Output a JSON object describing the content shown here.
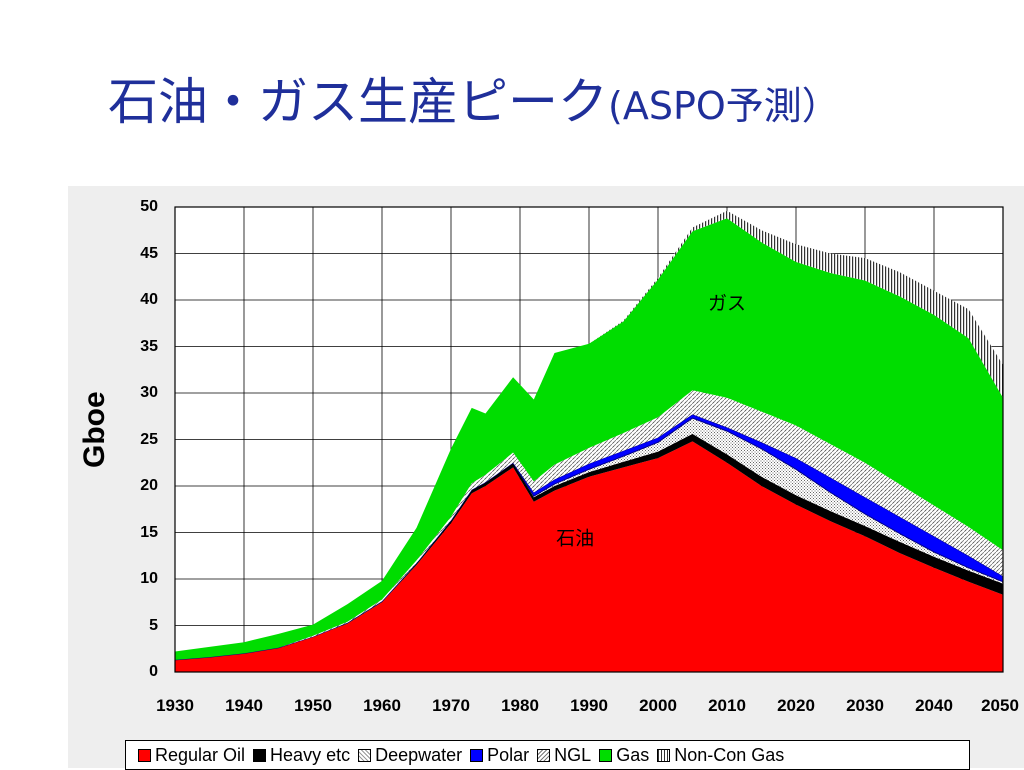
{
  "title": {
    "main": "石油・ガス生産ピーク",
    "sub": "(ASPO予測）"
  },
  "chart_data": {
    "type": "area",
    "stacked": true,
    "title": "",
    "xlabel": "",
    "ylabel": "Gboe",
    "xlim": [
      1930,
      2050
    ],
    "ylim": [
      0,
      50
    ],
    "grid": true,
    "x_ticks": [
      "1930",
      "1940",
      "1950",
      "1960",
      "1970",
      "1980",
      "1990",
      "2000",
      "2010",
      "2020",
      "2030",
      "2040",
      "2050"
    ],
    "y_ticks": [
      "0",
      "5",
      "10",
      "15",
      "20",
      "25",
      "30",
      "35",
      "40",
      "45",
      "50"
    ],
    "legend_position": "bottom",
    "annotations": [
      {
        "text": "ガス",
        "x": 2010,
        "y": 39.8
      },
      {
        "text": "石油",
        "x": 1988,
        "y": 14.5
      }
    ],
    "x": [
      1930,
      1935,
      1940,
      1945,
      1950,
      1955,
      1960,
      1965,
      1970,
      1973,
      1975,
      1979,
      1982,
      1985,
      1990,
      1995,
      2000,
      2005,
      2010,
      2015,
      2020,
      2025,
      2030,
      2035,
      2040,
      2045,
      2050
    ],
    "series": [
      {
        "name": "Regular Oil",
        "color": "#ff0000",
        "values": [
          1.3,
          1.6,
          2.0,
          2.6,
          3.8,
          5.2,
          7.5,
          11.5,
          16.0,
          19.2,
          20.0,
          22.0,
          18.3,
          19.5,
          21.0,
          22.0,
          23.0,
          24.8,
          22.5,
          20.0,
          18.0,
          16.2,
          14.6,
          12.8,
          11.2,
          9.7,
          8.3
        ]
      },
      {
        "name": "Heavy etc",
        "color": "#000000",
        "values": [
          0.0,
          0.0,
          0.0,
          0.0,
          0.0,
          0.1,
          0.1,
          0.2,
          0.3,
          0.4,
          0.4,
          0.5,
          0.5,
          0.5,
          0.5,
          0.6,
          0.7,
          0.8,
          0.9,
          1.0,
          1.0,
          1.1,
          1.1,
          1.2,
          1.2,
          1.2,
          1.2
        ]
      },
      {
        "name": "Deepwater",
        "color": "#d0d0d0",
        "values": [
          0.0,
          0.0,
          0.0,
          0.0,
          0.0,
          0.0,
          0.0,
          0.0,
          0.0,
          0.0,
          0.0,
          0.0,
          0.1,
          0.2,
          0.3,
          0.6,
          1.0,
          1.7,
          2.5,
          3.0,
          2.8,
          2.0,
          1.3,
          0.9,
          0.5,
          0.3,
          0.2
        ]
      },
      {
        "name": "Polar",
        "color": "#0000ff",
        "values": [
          0.0,
          0.0,
          0.0,
          0.0,
          0.0,
          0.0,
          0.0,
          0.0,
          0.0,
          0.0,
          0.0,
          0.0,
          0.4,
          0.5,
          0.6,
          0.6,
          0.5,
          0.4,
          0.4,
          0.7,
          1.2,
          1.6,
          1.8,
          1.8,
          1.7,
          1.3,
          0.6
        ]
      },
      {
        "name": "NGL",
        "color": "#bcbcbc",
        "values": [
          0.0,
          0.0,
          0.0,
          0.0,
          0.1,
          0.1,
          0.2,
          0.3,
          0.4,
          0.7,
          0.8,
          1.1,
          1.2,
          1.6,
          1.7,
          1.9,
          2.2,
          2.6,
          3.2,
          3.3,
          3.5,
          3.6,
          3.7,
          3.5,
          3.3,
          3.1,
          2.8
        ]
      },
      {
        "name": "Gas",
        "color": "#00dd00",
        "values": [
          0.9,
          1.1,
          1.2,
          1.5,
          1.2,
          1.9,
          2.0,
          3.5,
          7.3,
          8.1,
          6.6,
          8.1,
          8.8,
          12.0,
          11.2,
          12.0,
          14.8,
          17.1,
          19.3,
          18.2,
          17.6,
          18.4,
          19.6,
          20.2,
          20.5,
          20.3,
          16.4
        ]
      },
      {
        "name": "Non-Con Gas",
        "color": "#9a9a9a",
        "values": [
          0.0,
          0.0,
          0.0,
          0.0,
          0.0,
          0.0,
          0.0,
          0.0,
          0.0,
          0.0,
          0.0,
          0.0,
          0.0,
          0.0,
          0.0,
          0.1,
          0.2,
          0.4,
          0.8,
          1.3,
          1.9,
          2.1,
          2.4,
          2.6,
          2.6,
          3.1,
          3.5
        ]
      }
    ]
  }
}
